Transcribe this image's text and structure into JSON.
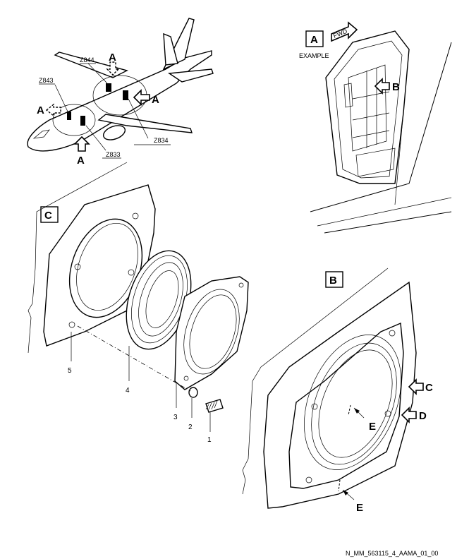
{
  "aircraft_view": {
    "zone_labels": [
      "Z844",
      "Z843",
      "Z834",
      "Z833"
    ],
    "view_arrow_label": "A"
  },
  "view_a": {
    "box_label": "A",
    "caption": "EXAMPLE",
    "fwd_label": "FWD",
    "arrow_label": "B"
  },
  "view_c": {
    "box_label": "C",
    "item_numbers": [
      "5",
      "4",
      "3",
      "2",
      "1"
    ]
  },
  "view_b": {
    "box_label": "B",
    "arrow_c_label": "C",
    "arrow_d_label": "D",
    "arrow_e_label": "E"
  },
  "drawing_id": "N_MM_563115_4_AAMA_01_00"
}
